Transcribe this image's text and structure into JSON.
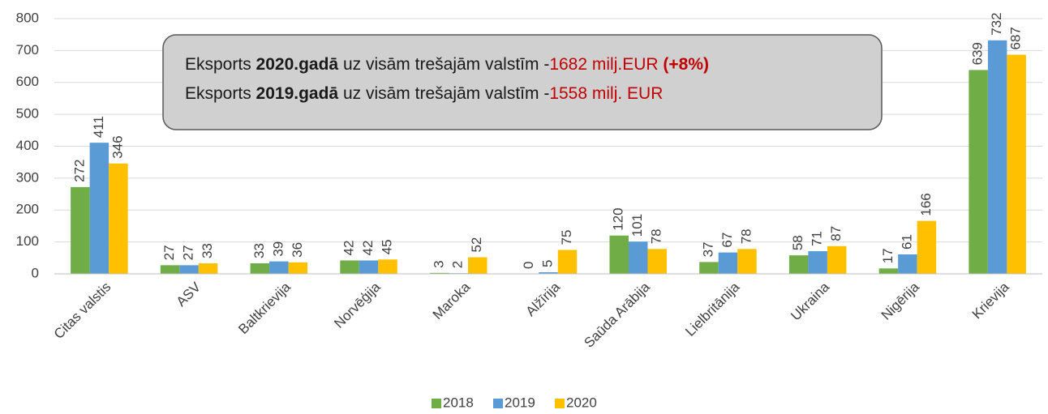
{
  "chart_data": {
    "type": "bar",
    "categories": [
      "Citas valstis",
      "ASV",
      "Baltkrievija",
      "Norvēģija",
      "Maroka",
      "Alžīrija",
      "Saūda Arābija",
      "Lielbritānija",
      "Ukraina",
      "Nigērija",
      "Krievija"
    ],
    "series": [
      {
        "name": "2018",
        "color": "#70ad47",
        "values": [
          272,
          27,
          33,
          42,
          3,
          0,
          120,
          37,
          58,
          17,
          639
        ]
      },
      {
        "name": "2019",
        "color": "#5b9bd5",
        "values": [
          411,
          27,
          39,
          42,
          2,
          5,
          101,
          67,
          71,
          61,
          732
        ]
      },
      {
        "name": "2020",
        "color": "#ffc000",
        "values": [
          346,
          33,
          36,
          45,
          52,
          75,
          78,
          78,
          87,
          166,
          687
        ]
      }
    ],
    "ylim": [
      0,
      800
    ],
    "yticks": [
      0,
      100,
      200,
      300,
      400,
      500,
      600,
      700,
      800
    ],
    "grid": true,
    "legend": "bottom",
    "annotation": [
      [
        {
          "text": "Eksports "
        },
        {
          "text": "2020.gadā",
          "bold": true
        },
        {
          "text": " uz visām trešajām valstīm -"
        },
        {
          "text": "1682 milj.EUR",
          "color": "#c00000"
        },
        {
          "text": " (+8%)",
          "bold": true,
          "color": "#c00000"
        }
      ],
      [
        {
          "text": "Eksports "
        },
        {
          "text": "2019.gadā",
          "bold": true
        },
        {
          "text": " uz visām trešajām valstīm -"
        },
        {
          "text": "1558 milj. EUR",
          "color": "#c00000"
        }
      ]
    ]
  }
}
